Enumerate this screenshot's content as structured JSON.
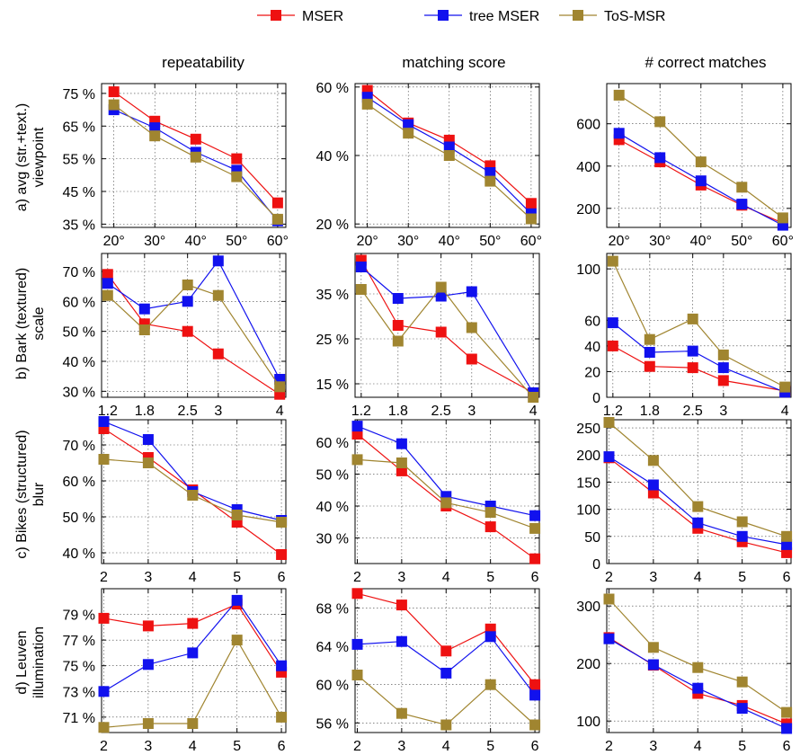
{
  "legend": [
    {
      "name": "MSER",
      "color": "#ee1111"
    },
    {
      "name": "tree MSER",
      "color": "#1111ee"
    },
    {
      "name": "ToS-MSR",
      "color": "#a08530"
    }
  ],
  "column_titles": [
    "repeatability",
    "matching score",
    "# correct matches"
  ],
  "row_labels": [
    [
      "a) avg (str.+text.)",
      "viewpoint"
    ],
    [
      "b) Bark (textured)",
      "scale"
    ],
    [
      "c) Bikes (structured)",
      "blur"
    ],
    [
      "d) Leuven",
      "illumination"
    ]
  ],
  "chart_data": [
    {
      "type": "line",
      "row": 0,
      "col": 0,
      "x": [
        20,
        30,
        40,
        50,
        60
      ],
      "xticks": [
        20,
        30,
        40,
        50,
        60
      ],
      "xticklabels": [
        "20°",
        "30°",
        "40°",
        "50°",
        "60°"
      ],
      "xlim": [
        17,
        62
      ],
      "ylim": [
        34,
        78
      ],
      "yticks": [
        35,
        45,
        55,
        65,
        75
      ],
      "yticklabels": [
        "35 %",
        "45 %",
        "55 %",
        "65 %",
        "75 %"
      ],
      "series": [
        {
          "name": "MSER",
          "values": [
            75.5,
            66.5,
            61,
            55,
            41.5
          ]
        },
        {
          "name": "tree MSER",
          "values": [
            70,
            64.5,
            57,
            51.5,
            36
          ]
        },
        {
          "name": "ToS-MSR",
          "values": [
            71.5,
            62,
            55.5,
            49.5,
            36.5
          ]
        }
      ]
    },
    {
      "type": "line",
      "row": 0,
      "col": 1,
      "x": [
        20,
        30,
        40,
        50,
        60
      ],
      "xticks": [
        20,
        30,
        40,
        50,
        60
      ],
      "xticklabels": [
        "20°",
        "30°",
        "40°",
        "50°",
        "60°"
      ],
      "xlim": [
        17,
        62
      ],
      "ylim": [
        19,
        61
      ],
      "yticks": [
        20,
        40,
        60
      ],
      "yticklabels": [
        "20 %",
        "40 %",
        "60 %"
      ],
      "series": [
        {
          "name": "MSER",
          "values": [
            59,
            49.5,
            44.5,
            37,
            26
          ]
        },
        {
          "name": "tree MSER",
          "values": [
            57,
            49,
            42.5,
            35,
            23
          ]
        },
        {
          "name": "ToS-MSR",
          "values": [
            55,
            46.5,
            40,
            32.5,
            21.5
          ]
        }
      ]
    },
    {
      "type": "line",
      "row": 0,
      "col": 2,
      "x": [
        20,
        30,
        40,
        50,
        60
      ],
      "xticks": [
        20,
        30,
        40,
        50,
        60
      ],
      "xticklabels": [
        "20°",
        "30°",
        "40°",
        "50°",
        "60°"
      ],
      "xlim": [
        17,
        62
      ],
      "ylim": [
        110,
        790
      ],
      "yticks": [
        200,
        400,
        600
      ],
      "yticklabels": [
        "200",
        "400",
        "600"
      ],
      "series": [
        {
          "name": "MSER",
          "values": [
            525,
            420,
            310,
            215,
            130
          ]
        },
        {
          "name": "tree MSER",
          "values": [
            555,
            440,
            330,
            220,
            120
          ]
        },
        {
          "name": "ToS-MSR",
          "values": [
            735,
            610,
            420,
            300,
            155
          ]
        }
      ]
    },
    {
      "type": "line",
      "row": 1,
      "col": 0,
      "x": [
        1.2,
        1.8,
        2.5,
        3,
        4
      ],
      "xticks": [
        1.2,
        1.8,
        2.5,
        3,
        4
      ],
      "xticklabels": [
        "1.2",
        "1.8",
        "2.5",
        "3",
        "4"
      ],
      "xlim": [
        1.1,
        4.1
      ],
      "ylim": [
        28,
        76
      ],
      "yticks": [
        30,
        40,
        50,
        60,
        70
      ],
      "yticklabels": [
        "30 %",
        "40 %",
        "50 %",
        "60 %",
        "70 %"
      ],
      "series": [
        {
          "name": "MSER",
          "values": [
            69,
            52.5,
            50,
            42.5,
            29
          ]
        },
        {
          "name": "tree MSER",
          "values": [
            66,
            57.5,
            60,
            73.5,
            34
          ]
        },
        {
          "name": "ToS-MSR",
          "values": [
            62,
            50.5,
            65.5,
            62,
            31.5
          ]
        }
      ]
    },
    {
      "type": "line",
      "row": 1,
      "col": 1,
      "x": [
        1.2,
        1.8,
        2.5,
        3,
        4
      ],
      "xticks": [
        1.2,
        1.8,
        2.5,
        3,
        4
      ],
      "xticklabels": [
        "1.2",
        "1.8",
        "2.5",
        "3",
        "4"
      ],
      "xlim": [
        1.1,
        4.1
      ],
      "ylim": [
        12,
        44
      ],
      "yticks": [
        15,
        25,
        35
      ],
      "yticklabels": [
        "15 %",
        "25 %",
        "35 %"
      ],
      "series": [
        {
          "name": "MSER",
          "values": [
            42.5,
            28,
            26.5,
            20.5,
            13
          ]
        },
        {
          "name": "tree MSER",
          "values": [
            41,
            34,
            34.5,
            35.5,
            13
          ]
        },
        {
          "name": "ToS-MSR",
          "values": [
            36,
            24.5,
            36.5,
            27.5,
            12
          ]
        }
      ]
    },
    {
      "type": "line",
      "row": 1,
      "col": 2,
      "x": [
        1.2,
        1.8,
        2.5,
        3,
        4
      ],
      "xticks": [
        1.2,
        1.8,
        2.5,
        3,
        4
      ],
      "xticklabels": [
        "1.2",
        "1.8",
        "2.5",
        "3",
        "4"
      ],
      "xlim": [
        1.1,
        4.1
      ],
      "ylim": [
        0,
        112
      ],
      "yticks": [
        0,
        20,
        40,
        60,
        100
      ],
      "yticklabels": [
        "0",
        "20",
        "40",
        "60",
        "100"
      ],
      "series": [
        {
          "name": "MSER",
          "values": [
            40,
            24,
            23,
            13,
            5
          ]
        },
        {
          "name": "tree MSER",
          "values": [
            58,
            35,
            36,
            23,
            4
          ]
        },
        {
          "name": "ToS-MSR",
          "values": [
            106,
            45,
            61,
            33,
            8
          ]
        }
      ]
    },
    {
      "type": "line",
      "row": 2,
      "col": 0,
      "x": [
        2,
        3,
        4,
        5,
        6
      ],
      "xticks": [
        2,
        3,
        4,
        5,
        6
      ],
      "xticklabels": [
        "2",
        "3",
        "4",
        "5",
        "6"
      ],
      "xlim": [
        1.95,
        6.1
      ],
      "ylim": [
        37,
        77
      ],
      "yticks": [
        40,
        50,
        60,
        70
      ],
      "yticklabels": [
        "40 %",
        "50 %",
        "60 %",
        "70 %"
      ],
      "series": [
        {
          "name": "MSER",
          "values": [
            74.5,
            66.5,
            57.5,
            48.5,
            39.5
          ]
        },
        {
          "name": "tree MSER",
          "values": [
            76.5,
            71.5,
            57,
            52,
            49
          ]
        },
        {
          "name": "ToS-MSR",
          "values": [
            66,
            65,
            56,
            50.5,
            48.5
          ]
        }
      ]
    },
    {
      "type": "line",
      "row": 2,
      "col": 1,
      "x": [
        2,
        3,
        4,
        5,
        6
      ],
      "xticks": [
        2,
        3,
        4,
        5,
        6
      ],
      "xticklabels": [
        "2",
        "3",
        "4",
        "5",
        "6"
      ],
      "xlim": [
        1.95,
        6.1
      ],
      "ylim": [
        22,
        67
      ],
      "yticks": [
        30,
        40,
        50,
        60
      ],
      "yticklabels": [
        "30 %",
        "40 %",
        "50 %",
        "60 %"
      ],
      "series": [
        {
          "name": "MSER",
          "values": [
            62.5,
            51,
            40,
            33.5,
            23.5
          ]
        },
        {
          "name": "tree MSER",
          "values": [
            65,
            59.5,
            43,
            40,
            37
          ]
        },
        {
          "name": "ToS-MSR",
          "values": [
            54.5,
            53.5,
            41,
            38,
            33
          ]
        }
      ]
    },
    {
      "type": "line",
      "row": 2,
      "col": 2,
      "x": [
        2,
        3,
        4,
        5,
        6
      ],
      "xticks": [
        2,
        3,
        4,
        5,
        6
      ],
      "xticklabels": [
        "2",
        "3",
        "4",
        "5",
        "6"
      ],
      "xlim": [
        1.95,
        6.1
      ],
      "ylim": [
        0,
        265
      ],
      "yticks": [
        0,
        50,
        100,
        150,
        200,
        250
      ],
      "yticklabels": [
        "0",
        "50",
        "100",
        "150",
        "200",
        "250"
      ],
      "series": [
        {
          "name": "MSER",
          "values": [
            195,
            130,
            65,
            40,
            20
          ]
        },
        {
          "name": "tree MSER",
          "values": [
            197,
            145,
            75,
            50,
            35
          ]
        },
        {
          "name": "ToS-MSR",
          "values": [
            260,
            190,
            105,
            77,
            50
          ]
        }
      ]
    },
    {
      "type": "line",
      "row": 3,
      "col": 0,
      "x": [
        2,
        3,
        4,
        5,
        6
      ],
      "xticks": [
        2,
        3,
        4,
        5,
        6
      ],
      "xticklabels": [
        "2",
        "3",
        "4",
        "5",
        "6"
      ],
      "xlim": [
        1.95,
        6.1
      ],
      "ylim": [
        69.8,
        81
      ],
      "yticks": [
        71,
        73,
        75,
        77,
        79
      ],
      "yticklabels": [
        "71 %",
        "73 %",
        "75 %",
        "77 %",
        "79 %"
      ],
      "series": [
        {
          "name": "MSER",
          "values": [
            78.7,
            78.1,
            78.3,
            79.8,
            74.5
          ]
        },
        {
          "name": "tree MSER",
          "values": [
            73,
            75.1,
            76,
            80.1,
            75
          ]
        },
        {
          "name": "ToS-MSR",
          "values": [
            70.2,
            70.5,
            70.5,
            77,
            71
          ]
        }
      ]
    },
    {
      "type": "line",
      "row": 3,
      "col": 1,
      "x": [
        2,
        3,
        4,
        5,
        6
      ],
      "xticks": [
        2,
        3,
        4,
        5,
        6
      ],
      "xticklabels": [
        "2",
        "3",
        "4",
        "5",
        "6"
      ],
      "xlim": [
        1.95,
        6.1
      ],
      "ylim": [
        55,
        70
      ],
      "yticks": [
        56,
        60,
        64,
        68
      ],
      "yticklabels": [
        "56 %",
        "60 %",
        "64 %",
        "68 %"
      ],
      "series": [
        {
          "name": "MSER",
          "values": [
            69.5,
            68.3,
            63.5,
            65.8,
            60
          ]
        },
        {
          "name": "tree MSER",
          "values": [
            64.2,
            64.5,
            61.2,
            65,
            58.9
          ]
        },
        {
          "name": "ToS-MSR",
          "values": [
            61,
            57,
            55.8,
            60,
            55.8
          ]
        }
      ]
    },
    {
      "type": "line",
      "row": 3,
      "col": 2,
      "x": [
        2,
        3,
        4,
        5,
        6
      ],
      "xticks": [
        2,
        3,
        4,
        5,
        6
      ],
      "xticklabels": [
        "2",
        "3",
        "4",
        "5",
        "6"
      ],
      "xlim": [
        1.95,
        6.1
      ],
      "ylim": [
        80,
        330
      ],
      "yticks": [
        100,
        200,
        300
      ],
      "yticklabels": [
        "100",
        "200",
        "300"
      ],
      "series": [
        {
          "name": "MSER",
          "values": [
            245,
            197,
            148,
            127,
            95
          ]
        },
        {
          "name": "tree MSER",
          "values": [
            243,
            198,
            157,
            122,
            87
          ]
        },
        {
          "name": "ToS-MSR",
          "values": [
            312,
            228,
            193,
            168,
            115
          ]
        }
      ]
    }
  ]
}
